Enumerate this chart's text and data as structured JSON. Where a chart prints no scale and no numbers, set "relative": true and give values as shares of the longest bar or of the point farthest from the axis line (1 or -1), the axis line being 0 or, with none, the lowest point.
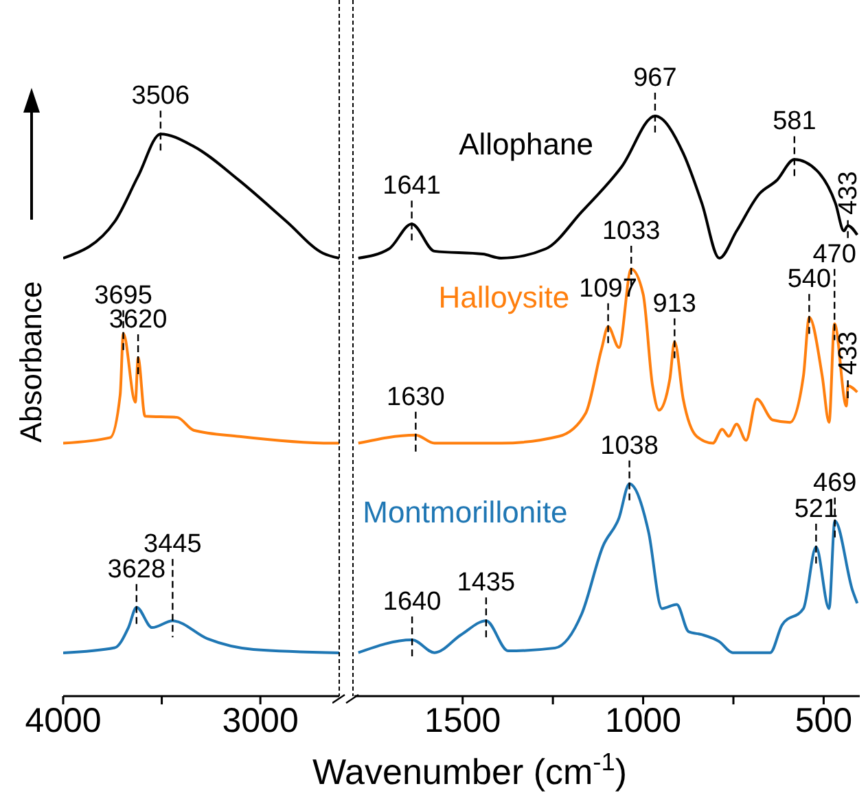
{
  "chart_data": [
    {
      "type": "line",
      "ylabel": "Absorbance",
      "relative": true,
      "xlim": [
        4000,
        2600
      ],
      "xticks": [
        4000,
        {
          "value": 3500,
          "label": null
        },
        3000
      ],
      "marker": "none",
      "line_style": "solid",
      "series": [
        {
          "color": "#000000",
          "x": [
            4000,
            3739,
            3620,
            3506,
            3338,
            3106,
            2866,
            2683,
            2600
          ],
          "values": [
            0.779,
            0.844,
            0.925,
            1,
            0.978,
            0.917,
            0.844,
            0.788,
            0.779
          ]
        },
        {
          "color": "#ff7f0e",
          "x": [
            4000,
            3761,
            3711,
            3695,
            3634,
            3620,
            3585,
            3423,
            3338,
            3106,
            2634,
            2600
          ],
          "values": [
            0.45,
            0.46,
            0.536,
            0.645,
            0.523,
            0.602,
            0.498,
            0.496,
            0.473,
            0.462,
            0.45,
            0.45
          ]
        },
        {
          "color": "#1f77b4",
          "x": [
            4000,
            3739,
            3669,
            3628,
            3549,
            3445,
            3268,
            3035,
            2600
          ],
          "values": [
            0.077,
            0.086,
            0.122,
            0.158,
            0.122,
            0.134,
            0.102,
            0.083,
            0.077
          ]
        }
      ],
      "annotations": [
        {
          "text": "3506",
          "x": 3506,
          "y": 1
        },
        {
          "text": "3695",
          "x": 3695,
          "y": 0.645
        },
        {
          "text": "3620",
          "x": 3620,
          "y": 0.602
        },
        {
          "text": "3628",
          "x": 3628,
          "y": 0.158
        },
        {
          "text": "3445",
          "x": 3445,
          "y": 0.134
        }
      ]
    },
    {
      "type": "line",
      "xlabel": "Wavenumber (cm$^{-1}$)",
      "relative": true,
      "xlim": [
        1800,
        400
      ],
      "xticks": [
        1500,
        {
          "value": 1250,
          "label": null
        },
        1000,
        {
          "value": 750,
          "label": null
        },
        500
      ],
      "marker": "none",
      "line_style": "solid",
      "series": [
        {
          "name": "Allophane",
          "color": "#000000",
          "x": [
            1789,
            1704,
            1641,
            1578,
            1444,
            1393,
            1270,
            1170,
            1059,
            967,
            889,
            837,
            789,
            741,
            678,
            630,
            581,
            519,
            467,
            444,
            433,
            407
          ],
          "values": [
            0.755,
            0.771,
            0.814,
            0.767,
            0.762,
            0.755,
            0.771,
            0.835,
            0.913,
            1.0,
            0.936,
            0.849,
            0.755,
            0.802,
            0.866,
            0.889,
            0.925,
            0.906,
            0.849,
            0.802,
            0.811,
            0.795
          ]
        },
        {
          "name": "Halloysite",
          "color": "#ff7f0e",
          "x": [
            1789,
            1630,
            1578,
            1393,
            1233,
            1159,
            1115,
            1097,
            1067,
            1033,
            1000,
            974,
            956,
            926,
            913,
            889,
            852,
            807,
            781,
            763,
            741,
            715,
            685,
            641,
            593,
            556,
            540,
            504,
            485,
            470,
            437,
            433,
            407
          ],
          "values": [
            0.436,
            0.45,
            0.436,
            0.436,
            0.448,
            0.488,
            0.599,
            0.637,
            0.601,
            0.736,
            0.693,
            0.535,
            0.493,
            0.547,
            0.611,
            0.512,
            0.448,
            0.436,
            0.46,
            0.448,
            0.469,
            0.441,
            0.512,
            0.476,
            0.472,
            0.552,
            0.653,
            0.552,
            0.472,
            0.642,
            0.5,
            0.535,
            0.524
          ]
        },
        {
          "name": "Montmorillonite",
          "color": "#1f77b4",
          "x": [
            1789,
            1640,
            1578,
            1504,
            1435,
            1374,
            1244,
            1170,
            1111,
            1067,
            1038,
            985,
            948,
            907,
            874,
            837,
            789,
            752,
            648,
            615,
            556,
            521,
            485,
            469,
            420,
            407
          ],
          "values": [
            0.075,
            0.097,
            0.075,
            0.106,
            0.13,
            0.078,
            0.083,
            0.142,
            0.259,
            0.307,
            0.366,
            0.283,
            0.151,
            0.158,
            0.111,
            0.106,
            0.094,
            0.075,
            0.075,
            0.123,
            0.151,
            0.257,
            0.151,
            0.302,
            0.182,
            0.16
          ]
        }
      ],
      "annotations": [
        {
          "text": "1641",
          "x": 1641,
          "y": 0.814
        },
        {
          "text": "967",
          "x": 967,
          "y": 1.0
        },
        {
          "text": "581",
          "x": 581,
          "y": 0.925
        },
        {
          "text": "433",
          "x": 433,
          "y": 0.811
        },
        {
          "text": "1630",
          "x": 1630,
          "y": 0.45
        },
        {
          "text": "1097",
          "x": 1097,
          "y": 0.637
        },
        {
          "text": "1033",
          "x": 1033,
          "y": 0.736
        },
        {
          "text": "913",
          "x": 913,
          "y": 0.611
        },
        {
          "text": "540",
          "x": 540,
          "y": 0.653
        },
        {
          "text": "470",
          "x": 470,
          "y": 0.642
        },
        {
          "text": "433",
          "x": 433,
          "y": 0.535
        },
        {
          "text": "1640",
          "x": 1640,
          "y": 0.097
        },
        {
          "text": "1435",
          "x": 1435,
          "y": 0.13
        },
        {
          "text": "1038",
          "x": 1038,
          "y": 0.366
        },
        {
          "text": "521",
          "x": 521,
          "y": 0.257
        },
        {
          "text": "469",
          "x": 469,
          "y": 0.302
        }
      ]
    }
  ]
}
